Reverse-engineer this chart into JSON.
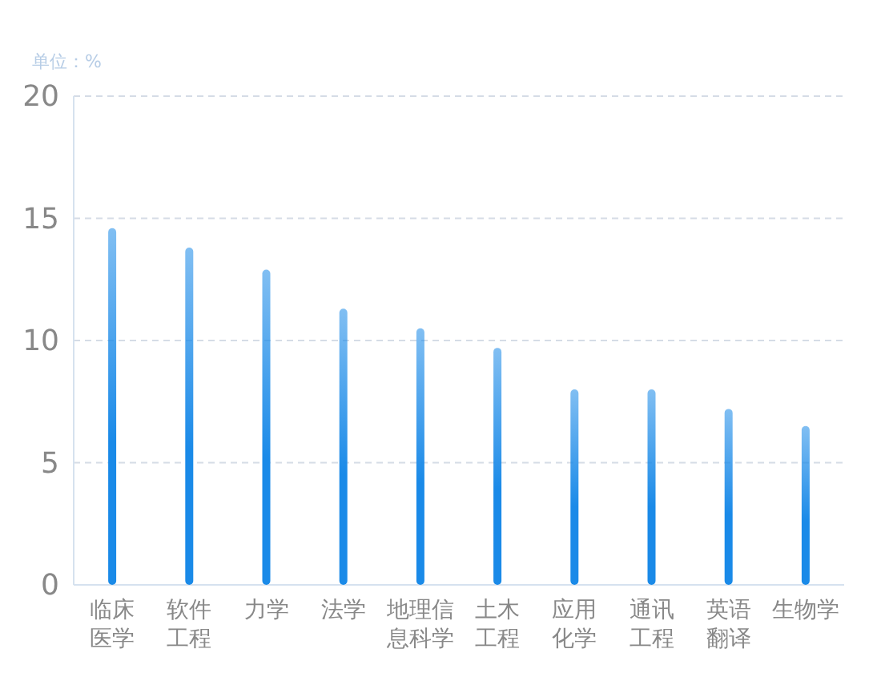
{
  "chart_data": {
    "type": "bar",
    "ylabel": "单位：%",
    "categories": [
      "临床医学",
      "软件工程",
      "力学",
      "法学",
      "地理信息科学",
      "土木工程",
      "应用化学",
      "通讯工程",
      "英语翻译",
      "生物学"
    ],
    "values": [
      14.6,
      13.8,
      12.9,
      11.3,
      10.5,
      9.7,
      8.0,
      8.0,
      7.2,
      6.5
    ],
    "color": "#1a8ae8",
    "ylim": [
      0,
      20
    ],
    "yticks": [
      0,
      5,
      10,
      15,
      20
    ],
    "grid": "y"
  }
}
